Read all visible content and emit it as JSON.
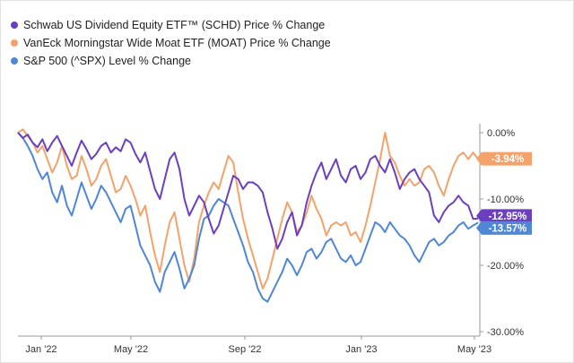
{
  "chart_data": {
    "type": "line",
    "legend_position": "top-left",
    "grid": false,
    "ylim": [
      -30,
      0
    ],
    "y_ticks": [
      "0.00%",
      "-10.00%",
      "-20.00%",
      "-30.00%"
    ],
    "x_ticks": [
      "Jan '22",
      "May '22",
      "Sep '22",
      "Jan '23",
      "May '23"
    ],
    "series": [
      {
        "name": "Schwab US Dividend Equity ETF™ (SCHD) Price % Change",
        "color": "#6a3fc0",
        "end_label": "-12.95%",
        "values": [
          0.0,
          -0.8,
          -0.3,
          -1.5,
          -2.2,
          -1.0,
          -2.8,
          -1.5,
          -0.5,
          -2.0,
          -3.5,
          -5.0,
          -3.0,
          -1.2,
          -2.5,
          -4.0,
          -3.2,
          -2.0,
          -1.5,
          -3.0,
          -2.2,
          -2.8,
          -1.0,
          -1.5,
          -3.2,
          -4.5,
          -3.0,
          -5.8,
          -8.5,
          -10.0,
          -7.0,
          -4.0,
          -3.0,
          -5.5,
          -10.0,
          -12.5,
          -11.0,
          -9.5,
          -10.5,
          -13.0,
          -15.2,
          -14.0,
          -11.5,
          -9.0,
          -6.5,
          -7.0,
          -8.5,
          -7.5,
          -7.5,
          -8.0,
          -9.0,
          -12.0,
          -14.5,
          -17.5,
          -16.0,
          -13.5,
          -12.0,
          -15.5,
          -14.0,
          -10.5,
          -8.0,
          -6.0,
          -4.5,
          -7.0,
          -5.5,
          -4.0,
          -6.5,
          -7.5,
          -5.5,
          -5.0,
          -7.0,
          -6.0,
          -4.0,
          -3.5,
          -5.0,
          -6.0,
          -4.0,
          -6.0,
          -8.5,
          -7.0,
          -6.0,
          -5.5,
          -7.0,
          -8.0,
          -9.0,
          -12.5,
          -13.5,
          -12.0,
          -11.0,
          -10.5,
          -9.5,
          -10.5,
          -11.0,
          -13.0,
          -12.95
        ]
      },
      {
        "name": "VanEck Morningstar Wide Moat ETF (MOAT) Price % Change",
        "color": "#f5a26a",
        "end_label": "-3.94%",
        "values": [
          0.0,
          0.5,
          -0.5,
          -1.5,
          -3.0,
          -2.0,
          -4.0,
          -6.0,
          -4.5,
          -2.0,
          -5.0,
          -7.0,
          -6.5,
          -3.5,
          -5.5,
          -8.0,
          -7.0,
          -5.0,
          -4.0,
          -6.5,
          -9.0,
          -8.5,
          -6.5,
          -8.0,
          -10.0,
          -12.5,
          -11.0,
          -15.0,
          -18.5,
          -21.0,
          -17.0,
          -13.5,
          -12.0,
          -16.0,
          -20.0,
          -22.5,
          -19.0,
          -13.5,
          -11.0,
          -9.0,
          -7.5,
          -8.5,
          -6.0,
          -3.5,
          -4.5,
          -9.0,
          -13.0,
          -16.0,
          -18.5,
          -21.0,
          -23.5,
          -22.0,
          -19.0,
          -16.0,
          -13.0,
          -10.5,
          -12.0,
          -15.0,
          -14.0,
          -12.0,
          -9.5,
          -11.5,
          -13.0,
          -15.5,
          -14.0,
          -13.5,
          -14.0,
          -13.5,
          -15.5,
          -15.0,
          -16.5,
          -14.0,
          -11.0,
          -7.5,
          -4.0,
          0.0,
          -3.5,
          -4.5,
          -6.5,
          -8.0,
          -7.0,
          -8.0,
          -7.5,
          -5.5,
          -5.0,
          -6.0,
          -8.0,
          -9.5,
          -7.0,
          -5.0,
          -3.5,
          -3.0,
          -4.0,
          -3.0,
          -3.94
        ]
      },
      {
        "name": "S&P 500 (^SPX) Level % Change",
        "color": "#4f86d6",
        "end_label": "-13.57%",
        "values": [
          0.0,
          -0.8,
          -2.0,
          -3.5,
          -5.5,
          -7.0,
          -6.0,
          -9.0,
          -10.5,
          -8.0,
          -11.0,
          -12.5,
          -10.0,
          -7.5,
          -9.5,
          -11.5,
          -10.0,
          -8.0,
          -9.0,
          -10.5,
          -12.0,
          -13.5,
          -11.5,
          -11.0,
          -14.0,
          -17.0,
          -18.5,
          -20.0,
          -22.5,
          -24.0,
          -21.0,
          -19.5,
          -18.0,
          -20.5,
          -23.5,
          -22.0,
          -20.0,
          -16.0,
          -13.0,
          -12.5,
          -11.0,
          -10.0,
          -10.5,
          -11.0,
          -13.0,
          -15.0,
          -17.0,
          -19.5,
          -21.0,
          -23.5,
          -25.0,
          -25.5,
          -24.0,
          -22.5,
          -21.0,
          -19.0,
          -20.0,
          -21.5,
          -20.0,
          -18.0,
          -17.5,
          -19.0,
          -18.0,
          -16.5,
          -16.0,
          -17.5,
          -19.0,
          -19.5,
          -18.5,
          -20.0,
          -19.5,
          -17.5,
          -15.5,
          -13.5,
          -14.0,
          -15.0,
          -13.5,
          -14.5,
          -15.5,
          -16.0,
          -17.0,
          -18.5,
          -19.5,
          -18.0,
          -16.5,
          -16.0,
          -17.0,
          -16.5,
          -15.5,
          -15.0,
          -14.0,
          -13.5,
          -14.5,
          -14.0,
          -13.57
        ]
      }
    ]
  }
}
